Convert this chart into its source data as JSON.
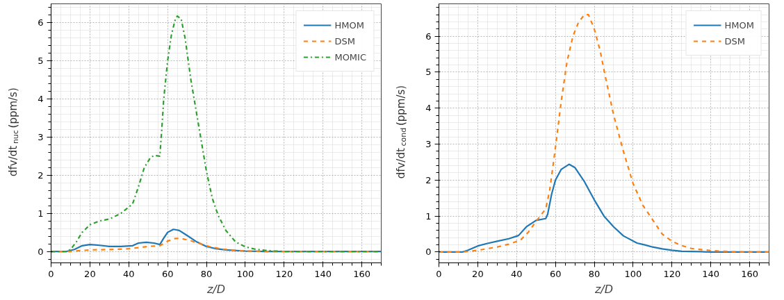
{
  "chart_data": [
    {
      "type": "line",
      "xlabel": "z/D",
      "ylabel": "dfv/dt$_{nuc}$ (ppm/s)",
      "xlim": [
        0,
        170
      ],
      "ylim": [
        -0.3,
        6.5
      ],
      "xticks": [
        0,
        20,
        40,
        60,
        80,
        100,
        120,
        140,
        160
      ],
      "yticks": [
        0,
        1,
        2,
        3,
        4,
        5,
        6
      ],
      "grid": true,
      "legend": "top right",
      "series": [
        {
          "name": "HMOM",
          "color": "#1f77b4",
          "line_style": "solid",
          "x": [
            0,
            8,
            12,
            16,
            20,
            25,
            30,
            36,
            42,
            45,
            49,
            53,
            56,
            58,
            60,
            63,
            66,
            70,
            75,
            80,
            85,
            90,
            100,
            110,
            170
          ],
          "values": [
            0,
            0,
            0.05,
            0.15,
            0.18,
            0.16,
            0.13,
            0.13,
            0.15,
            0.22,
            0.24,
            0.22,
            0.18,
            0.35,
            0.5,
            0.58,
            0.55,
            0.42,
            0.25,
            0.13,
            0.07,
            0.04,
            0.01,
            0,
            0
          ]
        },
        {
          "name": "DSM",
          "color": "#ff7f0e",
          "line_style": "dashed",
          "x": [
            0,
            10,
            15,
            20,
            30,
            40,
            45,
            50,
            56,
            60,
            64,
            67,
            72,
            78,
            82,
            88,
            95,
            100,
            110,
            170
          ],
          "values": [
            0,
            0,
            0.02,
            0.04,
            0.05,
            0.07,
            0.1,
            0.13,
            0.15,
            0.27,
            0.34,
            0.34,
            0.28,
            0.18,
            0.12,
            0.06,
            0.03,
            0.01,
            0,
            0
          ]
        },
        {
          "name": "MOMIC",
          "color": "#2ca02c",
          "line_style": "dashdot",
          "x": [
            0,
            8,
            10,
            13,
            16,
            20,
            25,
            30,
            36,
            42,
            45,
            48,
            51,
            53,
            56,
            57,
            58,
            60,
            62,
            64,
            65,
            67,
            69,
            72,
            75,
            78,
            80,
            83,
            86,
            90,
            95,
            100,
            105,
            110,
            115,
            120,
            170
          ],
          "values": [
            0,
            0,
            0.05,
            0.25,
            0.5,
            0.7,
            0.8,
            0.85,
            1.0,
            1.25,
            1.7,
            2.2,
            2.45,
            2.52,
            2.5,
            3.2,
            4.0,
            5.0,
            5.7,
            6.1,
            6.18,
            6.1,
            5.6,
            4.5,
            3.6,
            2.7,
            2.1,
            1.4,
            0.95,
            0.55,
            0.25,
            0.12,
            0.06,
            0.03,
            0.01,
            0,
            0
          ]
        }
      ]
    },
    {
      "type": "line",
      "xlabel": "z/D",
      "ylabel": "dfv/dt$_{cond}$ (ppm/s)",
      "xlim": [
        0,
        170
      ],
      "ylim": [
        -0.3,
        6.9
      ],
      "xticks": [
        0,
        20,
        40,
        60,
        80,
        100,
        120,
        140,
        160
      ],
      "yticks": [
        0,
        1,
        2,
        3,
        4,
        5,
        6
      ],
      "grid": true,
      "legend": "top right",
      "series": [
        {
          "name": "HMOM",
          "color": "#1f77b4",
          "line_style": "solid",
          "x": [
            0,
            12,
            15,
            20,
            25,
            30,
            36,
            41,
            45,
            50,
            55,
            56,
            58,
            60,
            63,
            67,
            70,
            75,
            80,
            85,
            90,
            95,
            102,
            106,
            110,
            115,
            120,
            125,
            135,
            140,
            170
          ],
          "values": [
            0,
            0,
            0.05,
            0.17,
            0.24,
            0.3,
            0.37,
            0.46,
            0.7,
            0.88,
            0.93,
            1.05,
            1.6,
            2.0,
            2.3,
            2.44,
            2.35,
            1.95,
            1.45,
            1.0,
            0.7,
            0.45,
            0.25,
            0.2,
            0.14,
            0.09,
            0.05,
            0.02,
            0.01,
            0,
            0
          ]
        },
        {
          "name": "DSM",
          "color": "#ff7f0e",
          "line_style": "dashed",
          "x": [
            0,
            12,
            20,
            30,
            36,
            42,
            46,
            50,
            55,
            57,
            60,
            63,
            66,
            69,
            72,
            75,
            77,
            80,
            83,
            86,
            90,
            95,
            100,
            105,
            110,
            115,
            120,
            125,
            130,
            140,
            150,
            160,
            170
          ],
          "values": [
            0,
            0,
            0.05,
            0.14,
            0.22,
            0.33,
            0.55,
            0.85,
            1.2,
            1.7,
            2.9,
            4.2,
            5.3,
            6.0,
            6.4,
            6.6,
            6.6,
            6.2,
            5.6,
            4.8,
            3.8,
            2.8,
            1.9,
            1.3,
            0.9,
            0.5,
            0.3,
            0.18,
            0.1,
            0.04,
            0.01,
            0,
            0
          ]
        }
      ]
    }
  ]
}
